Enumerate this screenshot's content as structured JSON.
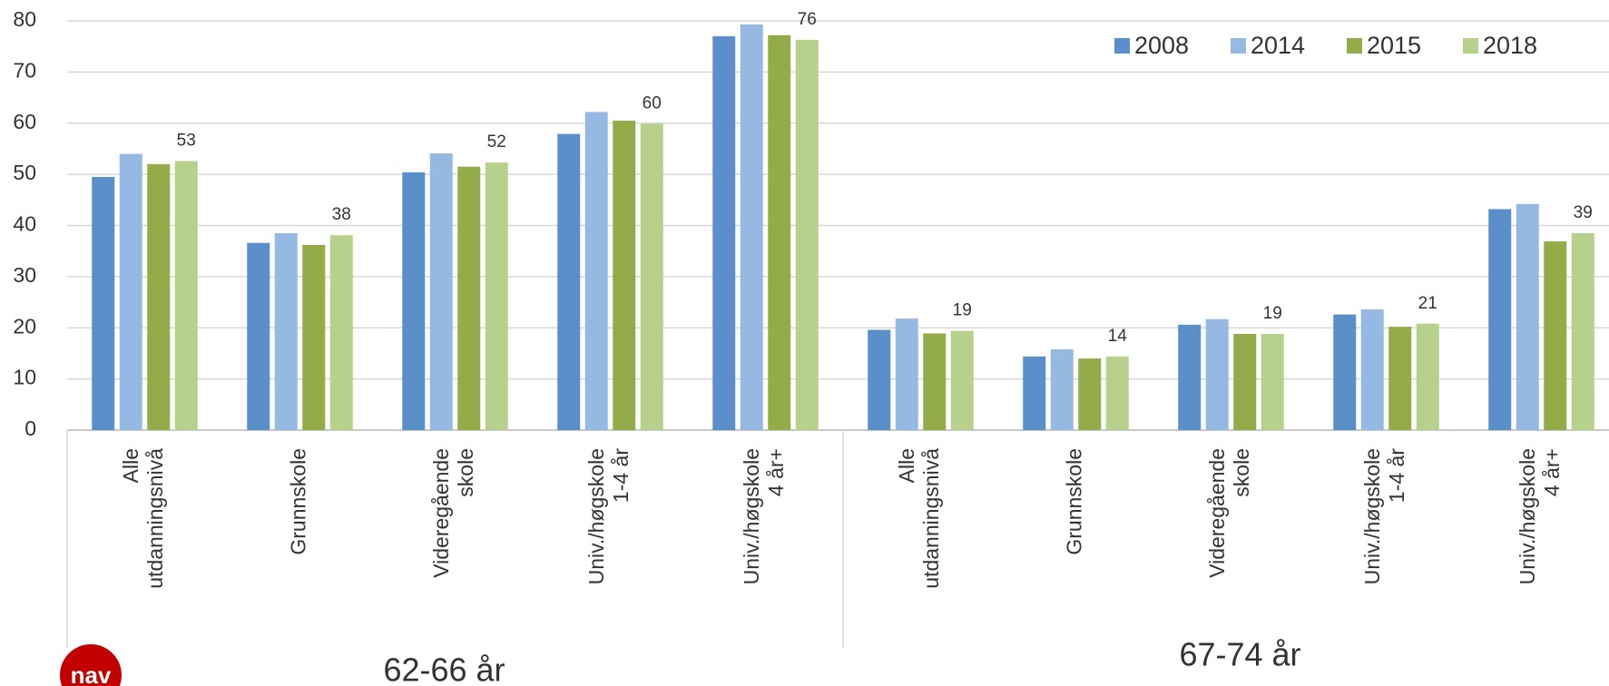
{
  "chart_data": {
    "type": "bar",
    "categories": [
      "Alle\nutdanningsnivå",
      "Grunnskole",
      "Videregående\nskole",
      "Univ./høgskole\n1-4 år",
      "Univ./høgskole\n4 år+",
      "Alle\nutdanningsnivå",
      "Grunnskole",
      "Videregående\nskole",
      "Univ./høgskole\n1-4 år",
      "Univ./høgskole\n4 år+"
    ],
    "groups": [
      "62-66 år",
      "67-74 år"
    ],
    "series": [
      {
        "name": "2008",
        "color": "#5b8fc9",
        "values": [
          49.5,
          36.6,
          50.4,
          57.9,
          77,
          19.6,
          14.4,
          20.6,
          22.6,
          43.2
        ]
      },
      {
        "name": "2014",
        "color": "#95b9e3",
        "values": [
          54,
          38.5,
          54.1,
          62.2,
          79.3,
          21.8,
          15.8,
          21.7,
          23.6,
          44.2
        ]
      },
      {
        "name": "2015",
        "color": "#94ab4a",
        "values": [
          52,
          36.2,
          51.5,
          60.5,
          77.2,
          18.9,
          14,
          18.8,
          20.2,
          36.9
        ]
      },
      {
        "name": "2018",
        "color": "#b7d08b",
        "values": [
          52.6,
          38.1,
          52.3,
          59.9,
          76.3,
          19.4,
          14.4,
          18.8,
          20.8,
          38.5
        ],
        "value_labels": [
          "53",
          "38",
          "52",
          "60",
          "76",
          "19",
          "14",
          "19",
          "21",
          "39"
        ]
      }
    ],
    "ylim": [
      0,
      80
    ],
    "yticks": [
      0,
      10,
      20,
      30,
      40,
      50,
      60,
      70,
      80
    ],
    "grid": true,
    "legend": "top-right",
    "logo": "nav"
  }
}
